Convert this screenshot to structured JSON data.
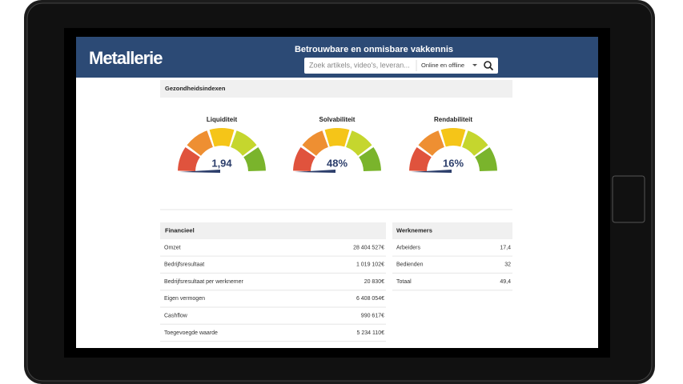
{
  "header": {
    "logo": "Metallerie",
    "tagline": "Betrouwbare en onmisbare vakkennis",
    "search_placeholder": "Zoek artikels, video's, leveran...",
    "search_scope": "Online en offline"
  },
  "health": {
    "title": "Gezondheidsindexen",
    "gauges": [
      {
        "label": "Liquiditeit",
        "value": "1,94"
      },
      {
        "label": "Solvabiliteit",
        "value": "48%"
      },
      {
        "label": "Rendabiliteit",
        "value": "16%"
      }
    ]
  },
  "financial": {
    "title": "Financieel",
    "rows": [
      [
        "Omzet",
        "28 404 527€"
      ],
      [
        "Bedrijfsresultaat",
        "1 019 102€"
      ],
      [
        "Bedrijfsresultaat per werknemer",
        "20 830€"
      ],
      [
        "Eigen vermogen",
        "6 408 054€"
      ],
      [
        "Cashflow",
        "990 617€"
      ],
      [
        "Toegevoegde waarde",
        "5 234 110€"
      ]
    ]
  },
  "employees": {
    "title": "Werknemers",
    "rows": [
      [
        "Arbeiders",
        "17,4"
      ],
      [
        "Bedienden",
        "32"
      ],
      [
        "Totaal",
        "49,4"
      ]
    ]
  }
}
